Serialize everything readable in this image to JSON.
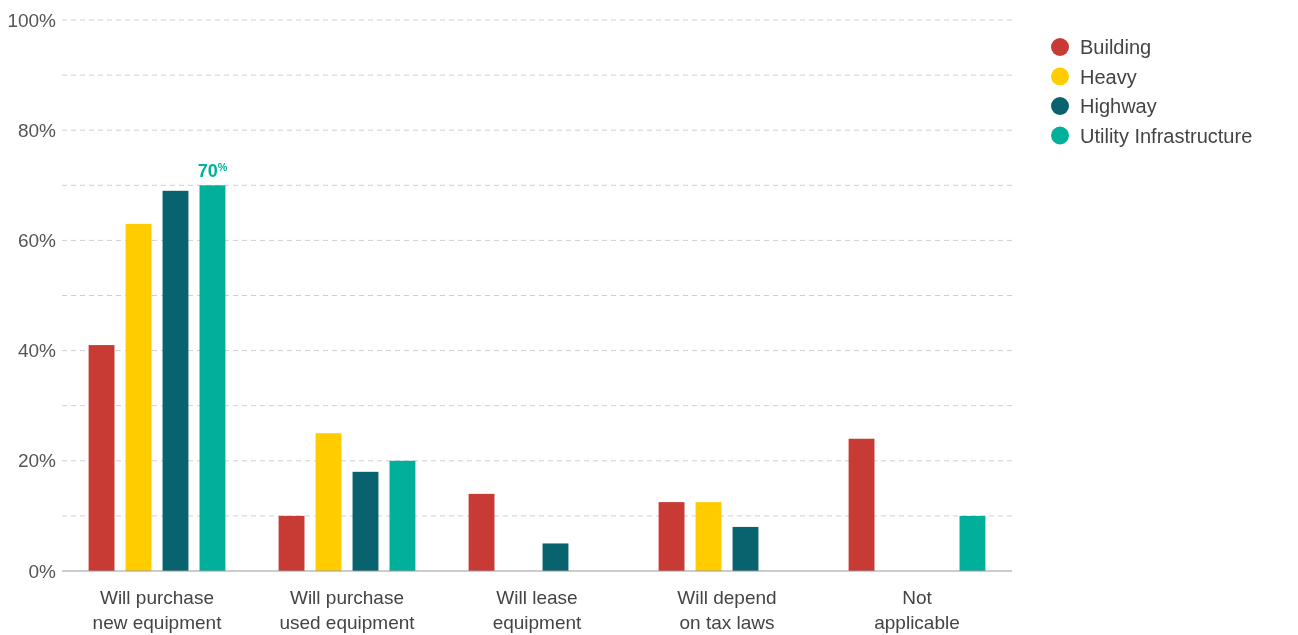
{
  "chart_data": {
    "type": "bar",
    "categories": [
      "Will purchase new equipment",
      "Will purchase used equipment",
      "Will lease equipment",
      "Will depend on tax laws",
      "Not applicable"
    ],
    "series": [
      {
        "name": "Building",
        "color": "#c83b34",
        "values": [
          41,
          10,
          14,
          12.5,
          24
        ]
      },
      {
        "name": "Heavy",
        "color": "#ffcc00",
        "values": [
          63,
          25,
          0,
          12.5,
          0
        ]
      },
      {
        "name": "Highway",
        "color": "#08636f",
        "values": [
          69,
          18,
          5,
          8,
          0
        ]
      },
      {
        "name": "Utility Infrastructure",
        "color": "#00b09b",
        "values": [
          70,
          20,
          0,
          0,
          10
        ],
        "value_labels": [
          "70$^{%}$",
          null,
          null,
          null,
          null
        ]
      }
    ],
    "ylim": [
      0,
      100
    ],
    "yticks": [
      {
        "value": 0,
        "label": "0%"
      },
      {
        "value": 10,
        "label": null
      },
      {
        "value": 20,
        "label": "20%"
      },
      {
        "value": 30,
        "label": null
      },
      {
        "value": 40,
        "label": "40%"
      },
      {
        "value": 50,
        "label": null
      },
      {
        "value": 60,
        "label": "60%"
      },
      {
        "value": 70,
        "label": null
      },
      {
        "value": 80,
        "label": "80%"
      },
      {
        "value": 90,
        "label": null
      },
      {
        "value": 100,
        "label": "100%"
      }
    ],
    "grid": "y",
    "legend": "top right"
  }
}
